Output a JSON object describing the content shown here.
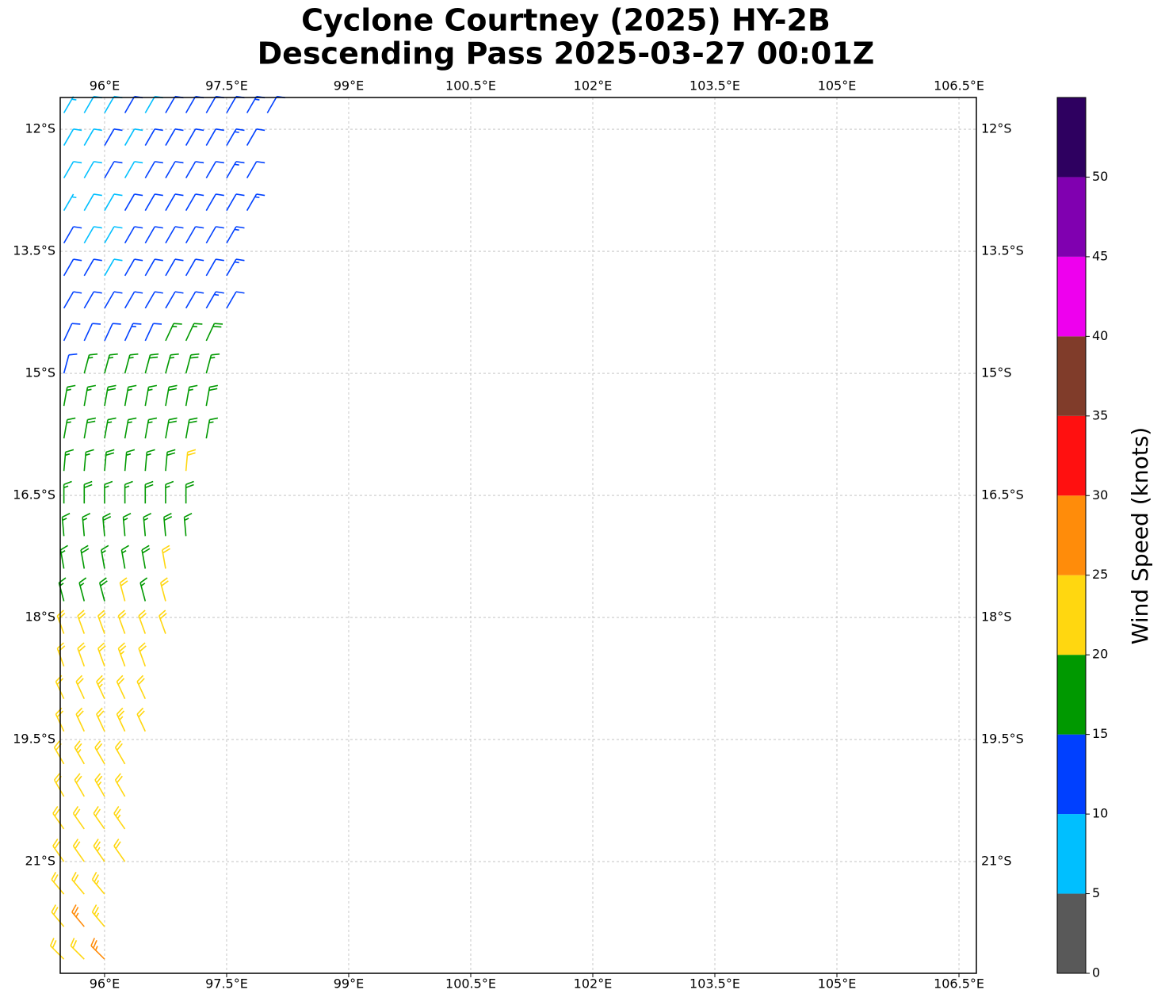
{
  "chart_data": {
    "type": "barbs",
    "title": "Cyclone Courtney (2025) HY-2B",
    "subtitle": "Descending Pass 2025-03-27 00:01Z",
    "xlim": [
      95.455,
      106.714
    ],
    "ylim": [
      -22.373,
      -11.61
    ],
    "xticks": [
      {
        "value": 96,
        "label": "96°E"
      },
      {
        "value": 97.5,
        "label": "97.5°E"
      },
      {
        "value": 99,
        "label": "99°E"
      },
      {
        "value": 100.5,
        "label": "100.5°E"
      },
      {
        "value": 102,
        "label": "102°E"
      },
      {
        "value": 103.5,
        "label": "103.5°E"
      },
      {
        "value": 105,
        "label": "105°E"
      },
      {
        "value": 106.5,
        "label": "106.5°E"
      }
    ],
    "yticks": [
      {
        "value": -12,
        "label": "12°S"
      },
      {
        "value": -13.5,
        "label": "13.5°S"
      },
      {
        "value": -15,
        "label": "15°S"
      },
      {
        "value": -16.5,
        "label": "16.5°S"
      },
      {
        "value": -18,
        "label": "18°S"
      },
      {
        "value": -19.5,
        "label": "19.5°S"
      },
      {
        "value": -21,
        "label": "21°S"
      }
    ],
    "grid": true,
    "colorbar": {
      "label": "Wind Speed (knots)",
      "levels": [
        0,
        5,
        10,
        15,
        20,
        25,
        30,
        35,
        40,
        45,
        50,
        55
      ],
      "colors": [
        "#595959",
        "#00bfff",
        "#0040ff",
        "#009900",
        "#ffd710",
        "#ff8c0a",
        "#ff1010",
        "#803c2a",
        "#ee00ee",
        "#8000b0",
        "#2e0060"
      ],
      "ticks": [
        0,
        5,
        10,
        15,
        20,
        25,
        30,
        35,
        40,
        45,
        50
      ]
    },
    "rows": [
      {
        "lat": -11.8,
        "dir": 30,
        "lon": [
          95.5,
          95.75,
          96,
          96.25,
          96.5,
          96.75,
          97,
          97.25,
          97.5,
          97.75,
          98
        ],
        "speed": [
          7,
          8,
          9,
          12,
          8,
          12,
          12,
          11,
          12,
          13,
          12
        ]
      },
      {
        "lat": -12.2,
        "dir": 30,
        "lon": [
          95.5,
          95.75,
          96,
          96.25,
          96.5,
          96.75,
          97,
          97.25,
          97.5,
          97.75
        ],
        "speed": [
          8,
          8,
          12,
          9,
          12,
          12,
          12,
          11,
          13,
          12
        ]
      },
      {
        "lat": -12.6,
        "dir": 30,
        "lon": [
          95.5,
          95.75,
          96,
          96.25,
          96.5,
          96.75,
          97,
          97.25,
          97.5,
          97.75
        ],
        "speed": [
          8,
          9,
          12,
          8,
          12,
          12,
          11,
          12,
          13,
          12
        ]
      },
      {
        "lat": -13.0,
        "dir": 30,
        "lon": [
          95.5,
          95.75,
          96,
          96.25,
          96.5,
          96.75,
          97,
          97.25,
          97.5,
          97.75
        ],
        "speed": [
          7,
          8,
          9,
          12,
          12,
          12,
          12,
          11,
          12,
          13
        ]
      },
      {
        "lat": -13.4,
        "dir": 30,
        "lon": [
          95.5,
          95.75,
          96,
          96.25,
          96.5,
          96.75,
          97,
          97.25,
          97.5
        ],
        "speed": [
          12,
          8,
          9,
          12,
          12,
          11,
          12,
          12,
          13
        ]
      },
      {
        "lat": -13.8,
        "dir": 30,
        "lon": [
          95.5,
          95.75,
          96,
          96.25,
          96.5,
          96.75,
          97,
          97.25,
          97.5
        ],
        "speed": [
          12,
          12,
          8,
          12,
          12,
          12,
          11,
          12,
          13
        ]
      },
      {
        "lat": -14.2,
        "dir": 30,
        "lon": [
          95.5,
          95.75,
          96,
          96.25,
          96.5,
          96.75,
          97,
          97.25,
          97.5
        ],
        "speed": [
          12,
          12,
          12,
          12,
          11,
          12,
          12,
          13,
          12
        ]
      },
      {
        "lat": -14.6,
        "dir": 25,
        "lon": [
          95.5,
          95.75,
          96,
          96.25,
          96.5,
          96.75,
          97,
          97.25
        ],
        "speed": [
          12,
          12,
          12,
          13,
          12,
          17,
          17,
          18
        ]
      },
      {
        "lat": -15.0,
        "dir": 15,
        "lon": [
          95.5,
          95.75,
          96,
          96.25,
          96.5,
          96.75,
          97,
          97.25
        ],
        "speed": [
          12,
          17,
          17,
          17,
          18,
          17,
          18,
          17
        ]
      },
      {
        "lat": -15.4,
        "dir": 10,
        "lon": [
          95.5,
          95.75,
          96,
          96.25,
          96.5,
          96.75,
          97,
          97.25
        ],
        "speed": [
          17,
          17,
          18,
          17,
          17,
          18,
          17,
          18
        ]
      },
      {
        "lat": -15.8,
        "dir": 10,
        "lon": [
          95.5,
          95.75,
          96,
          96.25,
          96.5,
          96.75,
          97,
          97.25
        ],
        "speed": [
          17,
          18,
          17,
          17,
          17,
          18,
          18,
          17
        ]
      },
      {
        "lat": -16.2,
        "dir": 5,
        "lon": [
          95.5,
          95.75,
          96,
          96.25,
          96.5,
          96.75,
          97
        ],
        "speed": [
          17,
          17,
          18,
          17,
          17,
          18,
          22
        ]
      },
      {
        "lat": -16.6,
        "dir": 0,
        "lon": [
          95.5,
          95.75,
          96,
          96.25,
          96.5,
          96.75,
          97
        ],
        "speed": [
          17,
          18,
          17,
          17,
          18,
          17,
          18
        ]
      },
      {
        "lat": -17.0,
        "dir": 355,
        "lon": [
          95.5,
          95.75,
          96,
          96.25,
          96.5,
          96.75,
          97
        ],
        "speed": [
          17,
          17,
          18,
          17,
          17,
          18,
          17
        ]
      },
      {
        "lat": -17.4,
        "dir": 350,
        "lon": [
          95.5,
          95.75,
          96,
          96.25,
          96.5,
          96.75
        ],
        "speed": [
          17,
          18,
          17,
          17,
          18,
          22
        ]
      },
      {
        "lat": -17.8,
        "dir": 345,
        "lon": [
          95.5,
          95.75,
          96,
          96.25,
          96.5,
          96.75
        ],
        "speed": [
          17,
          17,
          18,
          22,
          17,
          22
        ]
      },
      {
        "lat": -18.2,
        "dir": 340,
        "lon": [
          95.5,
          95.75,
          96,
          96.25,
          96.5,
          96.75
        ],
        "speed": [
          22,
          22,
          22,
          22,
          22,
          22
        ]
      },
      {
        "lat": -18.6,
        "dir": 340,
        "lon": [
          95.5,
          95.75,
          96,
          96.25,
          96.5
        ],
        "speed": [
          22,
          22,
          22,
          23,
          22
        ]
      },
      {
        "lat": -19.0,
        "dir": 335,
        "lon": [
          95.5,
          95.75,
          96,
          96.25,
          96.5
        ],
        "speed": [
          22,
          22,
          23,
          22,
          22
        ]
      },
      {
        "lat": -19.4,
        "dir": 335,
        "lon": [
          95.5,
          95.75,
          96,
          96.25,
          96.5
        ],
        "speed": [
          22,
          22,
          22,
          23,
          22
        ]
      },
      {
        "lat": -19.8,
        "dir": 330,
        "lon": [
          95.5,
          95.75,
          96,
          96.25
        ],
        "speed": [
          22,
          23,
          22,
          22
        ]
      },
      {
        "lat": -20.2,
        "dir": 330,
        "lon": [
          95.5,
          95.75,
          96,
          96.25
        ],
        "speed": [
          22,
          22,
          23,
          22
        ]
      },
      {
        "lat": -20.6,
        "dir": 325,
        "lon": [
          95.5,
          95.75,
          96,
          96.25
        ],
        "speed": [
          22,
          22,
          22,
          23
        ]
      },
      {
        "lat": -21.0,
        "dir": 325,
        "lon": [
          95.5,
          95.75,
          96,
          96.25
        ],
        "speed": [
          22,
          22,
          23,
          22
        ]
      },
      {
        "lat": -21.4,
        "dir": 320,
        "lon": [
          95.5,
          95.75,
          96
        ],
        "speed": [
          22,
          22,
          23
        ]
      },
      {
        "lat": -21.8,
        "dir": 320,
        "lon": [
          95.5,
          95.75,
          96
        ],
        "speed": [
          22,
          27,
          23
        ]
      },
      {
        "lat": -22.2,
        "dir": 315,
        "lon": [
          95.5,
          95.75,
          96
        ],
        "speed": [
          22,
          22,
          27
        ]
      }
    ]
  }
}
